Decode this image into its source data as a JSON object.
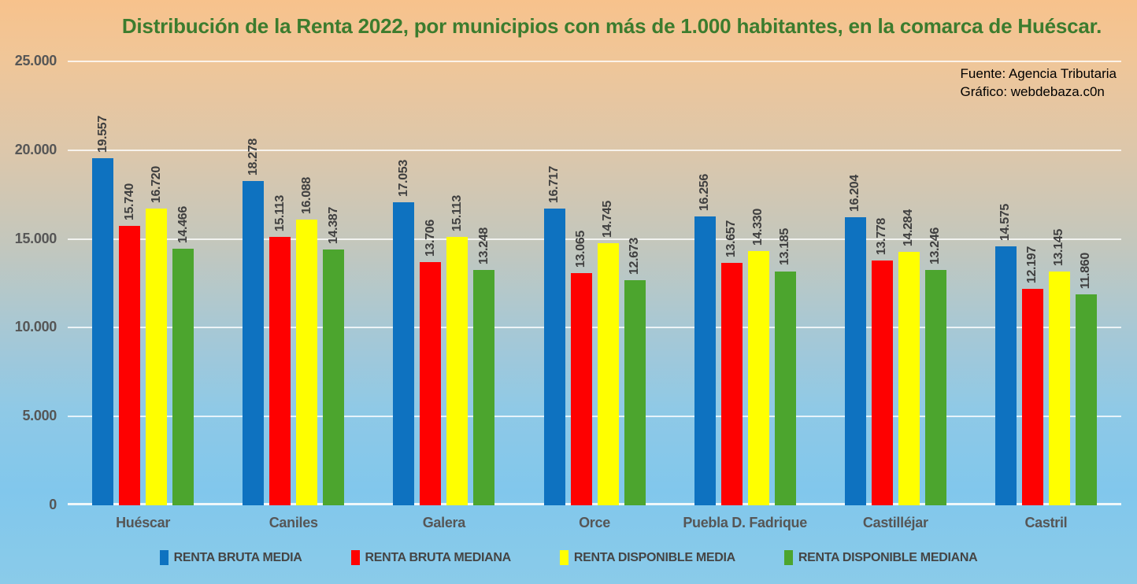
{
  "title": "Distribución de la Renta 2022, por municipios con más de 1.000 habitantes, en la comarca de Huéscar.",
  "title_color": "#3c7c2e",
  "source": {
    "line1": "Fuente: Agencia Tributaria",
    "line2": "Gráfico: webdebaza.c0n"
  },
  "chart_data": {
    "type": "bar",
    "title": "Distribución de la Renta 2022, por municipios con más de 1.000 habitantes, en la comarca de Huéscar.",
    "categories": [
      "Huéscar",
      "Caniles",
      "Galera",
      "Orce",
      "Puebla D. Fadrique",
      "Castilléjar",
      "Castril"
    ],
    "series": [
      {
        "name": "RENTA BRUTA MEDIA",
        "color": "#0e72c0",
        "values": [
          19557,
          18278,
          17053,
          16717,
          16256,
          16204,
          14575
        ]
      },
      {
        "name": "RENTA BRUTA MEDIANA",
        "color": "#fe0101",
        "values": [
          15740,
          15113,
          13706,
          13065,
          13657,
          13778,
          12197
        ]
      },
      {
        "name": "RENTA DISPONIBLE MEDIA",
        "color": "#ffff00",
        "values": [
          16720,
          16088,
          15113,
          14745,
          14330,
          14284,
          13145
        ]
      },
      {
        "name": "RENTA DISPONIBLE MEDIANA",
        "color": "#4ca52e",
        "values": [
          14466,
          14387,
          13248,
          12673,
          13185,
          13246,
          11860
        ]
      }
    ],
    "ylim": [
      0,
      25000
    ],
    "y_tick_values": [
      0,
      5000,
      10000,
      15000,
      20000,
      25000
    ],
    "y_tick_labels": [
      "0",
      "5.000",
      "10.000",
      "15.000",
      "20.000",
      "25.000"
    ],
    "grid": true,
    "legend_position": "bottom",
    "data_label_rotation": 90,
    "thousands_separator": "."
  }
}
